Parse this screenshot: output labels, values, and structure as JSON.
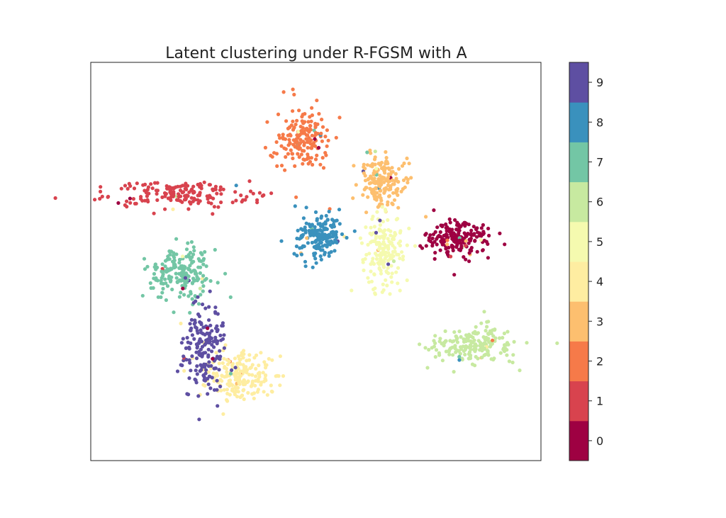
{
  "chart_data": {
    "type": "scatter",
    "title": "Latent clustering under R-FGSM with A",
    "xlabel": "",
    "ylabel": "",
    "axes_ticks": false,
    "colorbar": {
      "ticks": [
        "0",
        "1",
        "2",
        "3",
        "4",
        "5",
        "6",
        "7",
        "8",
        "9"
      ],
      "colors": [
        "#9e0142",
        "#d53e4f",
        "#f46d43",
        "#fdae61",
        "#fee08b",
        "#ffffbf",
        "#e6f598",
        "#abdda4",
        "#66c2a5",
        "#3288bd",
        "#5e4fa2"
      ],
      "palette": [
        "#9e0142",
        "#d8434e",
        "#f67a49",
        "#fdbf6f",
        "#feeda1",
        "#f5faaf",
        "#c7e9a0",
        "#73c6a5",
        "#3a91bd",
        "#5e4fa2"
      ]
    },
    "xlim": [
      0,
      100
    ],
    "ylim": [
      0,
      100
    ],
    "clusters": [
      {
        "label": "0",
        "cx": 82,
        "cy": 56,
        "sx": 6.5,
        "sy": 4.2,
        "n": 190
      },
      {
        "label": "1",
        "cx": 20,
        "cy": 67,
        "sx": 14,
        "sy": 3.2,
        "n": 180
      },
      {
        "label": "2",
        "cx": 47,
        "cy": 81,
        "sx": 5,
        "sy": 7,
        "n": 170
      },
      {
        "label": "3",
        "cx": 65,
        "cy": 70,
        "sx": 5,
        "sy": 6.5,
        "n": 180
      },
      {
        "label": "4",
        "cx": 33,
        "cy": 22,
        "sx": 8,
        "sy": 6,
        "n": 200
      },
      {
        "label": "5",
        "cx": 65,
        "cy": 52,
        "sx": 4,
        "sy": 8,
        "n": 180
      },
      {
        "label": "6",
        "cx": 85,
        "cy": 29,
        "sx": 9,
        "sy": 4,
        "n": 200
      },
      {
        "label": "7",
        "cx": 20,
        "cy": 47,
        "sx": 7,
        "sy": 6,
        "n": 190
      },
      {
        "label": "8",
        "cx": 51,
        "cy": 56,
        "sx": 5,
        "sy": 5,
        "n": 180
      },
      {
        "label": "9",
        "cx": 25,
        "cy": 28,
        "sx": 5,
        "sy": 10,
        "n": 180
      }
    ]
  }
}
